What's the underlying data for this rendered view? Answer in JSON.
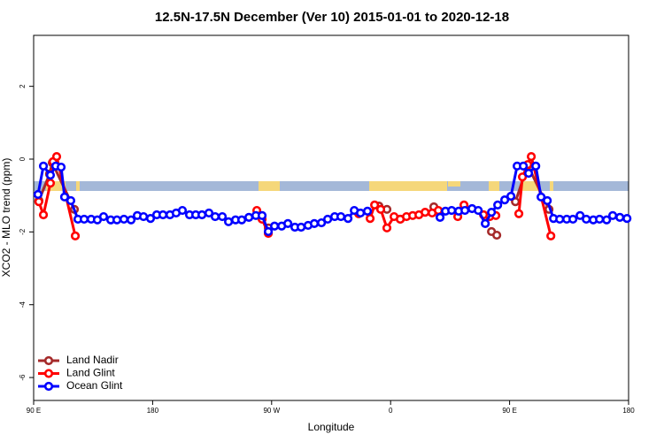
{
  "chart_data": {
    "type": "line",
    "title": "12.5N-17.5N December (Ver 10)   2015-01-01 to 2020-12-18",
    "x_label": "Longitude",
    "y_label": "XCO2 - MLO trend (ppm)",
    "xlim": [
      90,
      540
    ],
    "ylim": [
      -6.63,
      3.4
    ],
    "xticks": [
      {
        "value": 90,
        "label": "90 E"
      },
      180,
      {
        "value": 270,
        "label": "90 W"
      },
      {
        "value": 360,
        "label": "0"
      },
      {
        "value": 450,
        "label": "90 E"
      },
      180
    ],
    "yticks": [
      2,
      0,
      -2,
      -4,
      -6
    ],
    "legend": "bottom-left",
    "series": [
      {
        "name": "Land Nadir",
        "color": "#a52a2a",
        "x": [
          94,
          102,
          104.1,
          120.8,
          null,
          267.5,
          null,
          351.2,
          357.2,
          null,
          367.3,
          null,
          392.7,
          null,
          436.3,
          440.3,
          null,
          454.4,
          463.7,
          479.8
        ],
        "values": [
          -1.14,
          -0.41,
          -0.1,
          -1.38,
          null,
          -1.89,
          null,
          -1.29,
          -1.38,
          null,
          -1.65,
          null,
          -1.31,
          null,
          -1.99,
          -2.09,
          null,
          -1.17,
          -0.17,
          -1.38
        ]
      },
      {
        "name": "Land Glint",
        "color": "#ff0000",
        "x": [
          93.9,
          97.4,
          102.7,
          104.7,
          107.4,
          121.5,
          null,
          258.8,
          262.8,
          267.5,
          null,
          335.8,
          null,
          344.5,
          347.9,
          352.5,
          357.2,
          362.6,
          367.3,
          372,
          376.7,
          381.4,
          386.1,
          391.4,
          396.1,
          null,
          410.8,
          415.5,
          null,
          430.3,
          435,
          439.6,
          null,
          457,
          459.7,
          463.7,
          466.4,
          481.2
        ],
        "values": [
          -1.17,
          -1.53,
          -0.66,
          -0.07,
          0.07,
          -2.11,
          null,
          -1.41,
          -1.65,
          -2.04,
          null,
          -1.5,
          null,
          -1.63,
          -1.26,
          -1.38,
          -1.89,
          -1.58,
          -1.65,
          -1.58,
          -1.55,
          -1.53,
          -1.46,
          -1.48,
          -1.41,
          null,
          -1.58,
          -1.26,
          null,
          -1.53,
          -1.58,
          -1.55,
          null,
          -1.5,
          -0.49,
          -0.15,
          0.07,
          -2.11
        ]
      },
      {
        "name": "Ocean Glint",
        "color": "#0000ff",
        "x": [
          93.3,
          97.4,
          102.7,
          106.7,
          110.8,
          113.4,
          118.1,
          123.5,
          128.2,
          133.5,
          138.2,
          142.9,
          148.3,
          153,
          158.3,
          163.7,
          168.4,
          173.1,
          178.4,
          183.1,
          187.8,
          193.1,
          197.8,
          202.5,
          207.9,
          212.6,
          217.3,
          222.6,
          227.3,
          232.7,
          237.4,
          242.7,
          247.4,
          252.8,
          258.1,
          262.8,
          267.5,
          272.2,
          277.6,
          282.3,
          287.6,
          292.3,
          297.6,
          302.3,
          307.7,
          312.4,
          317.7,
          322.4,
          327.8,
          332.5,
          337.2,
          342.5,
          null,
          397.4,
          401.5,
          406.2,
          411.5,
          416.2,
          421.6,
          426.3,
          431.6,
          436.3,
          441,
          446.3,
          451,
          455.7,
          460.4,
          464.4,
          469.8,
          473.8,
          478.5,
          483.2,
          487.9,
          493.2,
          497.9,
          503.3,
          508,
          513.3,
          518,
          523.4,
          528,
          533.4,
          538.8
        ],
        "values": [
          -0.97,
          -0.19,
          -0.44,
          -0.19,
          -0.22,
          -1.04,
          -1.14,
          -1.65,
          -1.65,
          -1.65,
          -1.67,
          -1.58,
          -1.67,
          -1.67,
          -1.65,
          -1.67,
          -1.55,
          -1.58,
          -1.63,
          -1.53,
          -1.53,
          -1.53,
          -1.48,
          -1.41,
          -1.53,
          -1.53,
          -1.53,
          -1.48,
          -1.58,
          -1.58,
          -1.72,
          -1.67,
          -1.67,
          -1.6,
          -1.55,
          -1.55,
          -1.99,
          -1.84,
          -1.84,
          -1.77,
          -1.87,
          -1.87,
          -1.82,
          -1.77,
          -1.75,
          -1.65,
          -1.58,
          -1.58,
          -1.63,
          -1.41,
          -1.48,
          -1.43,
          null,
          -1.6,
          -1.43,
          -1.41,
          -1.43,
          -1.41,
          -1.36,
          -1.41,
          -1.77,
          -1.46,
          -1.26,
          -1.12,
          -1.02,
          -0.19,
          -0.19,
          -0.39,
          -0.19,
          -1.04,
          -1.14,
          -1.63,
          -1.65,
          -1.65,
          -1.65,
          -1.55,
          -1.65,
          -1.67,
          -1.65,
          -1.67,
          -1.55,
          -1.6,
          -1.63
        ]
      }
    ]
  }
}
